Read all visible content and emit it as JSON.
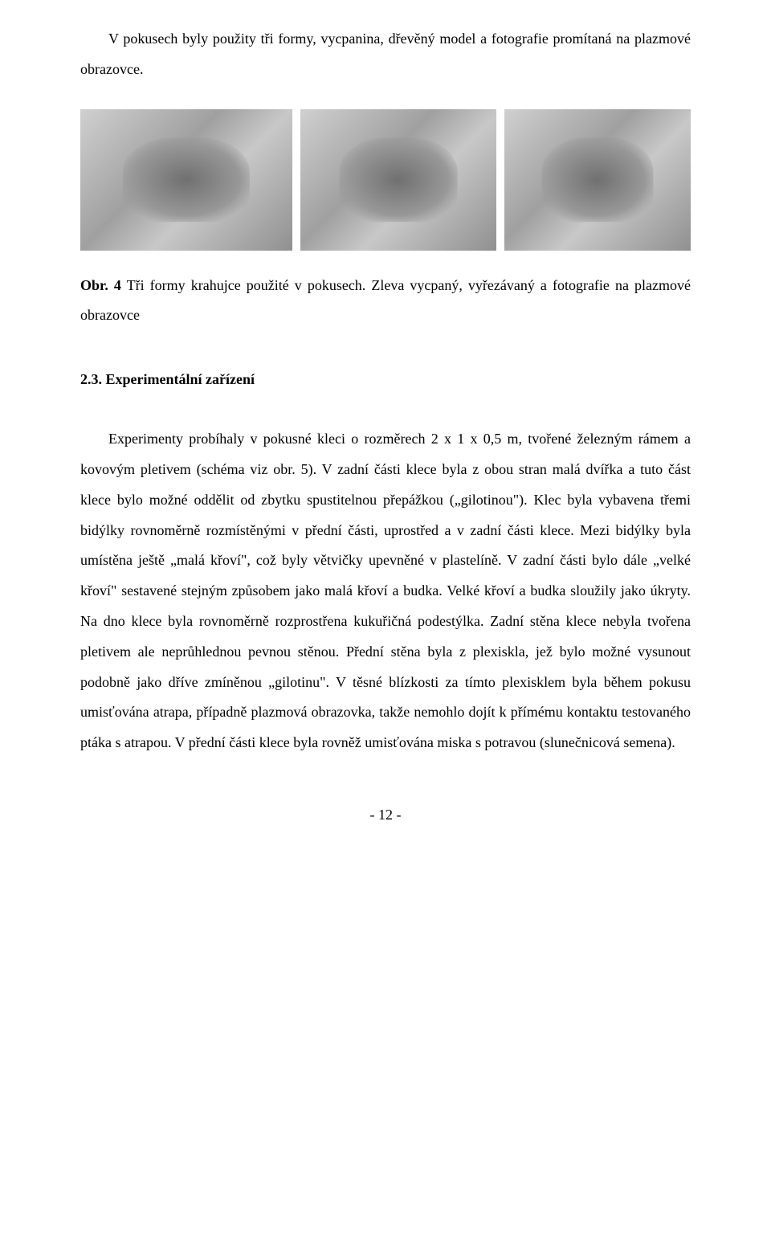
{
  "intro_paragraph": "V pokusech byly použity tři formy, vycpanina, dřevěný model a fotografie promítaná na plazmové obrazovce.",
  "figure": {
    "label": "Obr. 4",
    "caption_rest": "  Tři formy krahujce použité v pokusech. Zleva vycpaný, vyřezávaný a fotografie na plazmové obrazovce",
    "images": [
      {
        "name": "bird-photo-1"
      },
      {
        "name": "bird-photo-2"
      },
      {
        "name": "bird-photo-3"
      }
    ]
  },
  "section": {
    "number": "2.3.",
    "title": "Experimentální zařízení"
  },
  "body_paragraph": "Experimenty probíhaly v pokusné kleci o rozměrech 2 x 1 x 0,5 m, tvořené železným rámem a kovovým pletivem (schéma viz obr. 5). V zadní části klece byla z obou stran malá dvířka a tuto část klece bylo možné oddělit od zbytku spustitelnou přepážkou („gilotinou\"). Klec byla vybavena třemi bidýlky rovnoměrně rozmístěnými v přední části, uprostřed a v zadní části klece. Mezi bidýlky byla umístěna ještě „malá křoví\", což byly větvičky upevněné v plastelíně. V zadní části bylo dále „velké křoví\" sestavené stejným způsobem jako malá křoví a budka. Velké křoví a budka sloužily jako úkryty. Na dno klece byla rovnoměrně rozprostřena kukuřičná podestýlka. Zadní stěna klece nebyla tvořena pletivem ale neprůhlednou pevnou stěnou. Přední stěna byla z plexiskla, jež bylo možné vysunout podobně jako dříve zmíněnou „gilotinu\". V těsné blízkosti za tímto plexisklem byla během pokusu umisťována atrapa, případně plazmová obrazovka, takže nemohlo dojít k přímému kontaktu testovaného ptáka s atrapou. V přední části klece byla rovněž umisťována miska s potravou (slunečnicová semena).",
  "page_number": "- 12 -",
  "colors": {
    "background": "#ffffff",
    "text": "#000000"
  },
  "typography": {
    "font_family": "Times New Roman",
    "body_size_pt": 13,
    "line_height": 2.1
  }
}
